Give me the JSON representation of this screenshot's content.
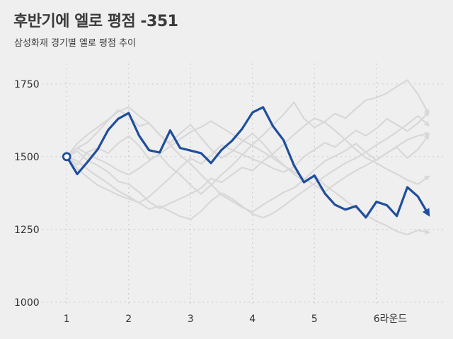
{
  "title": "후반기에 엘로 평점 -351",
  "subtitle": "삼성화재 경기별 엘로 평점 추이",
  "colors": {
    "background": "#efefef",
    "highlight": "#1f4e9c",
    "others": "#d8d8d8",
    "grid": "#c6c6c6",
    "text": "#333333"
  },
  "chart_data": {
    "type": "line",
    "title": "후반기에 엘로 평점 -351",
    "subtitle": "삼성화재 경기별 엘로 평점 추이",
    "xlabel": "",
    "ylabel": "",
    "xlim": [
      0.7,
      7.1
    ],
    "ylim": [
      980,
      1820
    ],
    "x_ticks": [
      1,
      2,
      3,
      4,
      5,
      6
    ],
    "x_tick_labels": [
      "1",
      "2",
      "3",
      "4",
      "5",
      "6라운드"
    ],
    "y_ticks": [
      1000,
      1250,
      1500,
      1750
    ],
    "y_tick_labels": [
      "1000",
      "1250",
      "1500",
      "1750"
    ],
    "grid": "dotted",
    "highlight_series": {
      "x": [
        1,
        1.17,
        1.33,
        1.5,
        1.67,
        1.83,
        2,
        2.17,
        2.33,
        2.5,
        2.67,
        2.83,
        3,
        3.17,
        3.33,
        3.5,
        3.67,
        3.83,
        4,
        4.17,
        4.33,
        4.5,
        4.67,
        4.83,
        5,
        5.17,
        5.33,
        5.5,
        5.67,
        5.83,
        6,
        6.17,
        6.33,
        6.5,
        6.67,
        6.83
      ],
      "values": [
        1500,
        1440,
        1480,
        1525,
        1592,
        1630,
        1650,
        1572,
        1522,
        1514,
        1590,
        1530,
        1521,
        1512,
        1478,
        1523,
        1555,
        1595,
        1652,
        1670,
        1605,
        1557,
        1470,
        1412,
        1435,
        1373,
        1335,
        1318,
        1330,
        1291,
        1345,
        1333,
        1296,
        1395,
        1363,
        1305
      ]
    },
    "background_series": [
      {
        "values": [
          1500,
          1530,
          1548,
          1585,
          1625,
          1660,
          1640,
          1605,
          1615,
          1575,
          1547,
          1580,
          1610,
          1565,
          1525,
          1495,
          1518,
          1551,
          1580,
          1545,
          1505,
          1472,
          1440,
          1415,
          1437,
          1402,
          1378,
          1350,
          1322,
          1300,
          1278,
          1262,
          1243,
          1232,
          1247,
          1240
        ]
      },
      {
        "values": [
          1500,
          1472,
          1515,
          1530,
          1512,
          1546,
          1571,
          1537,
          1492,
          1505,
          1465,
          1438,
          1402,
          1372,
          1402,
          1438,
          1470,
          1505,
          1542,
          1574,
          1609,
          1645,
          1687,
          1631,
          1600,
          1621,
          1648,
          1632,
          1665,
          1694,
          1703,
          1718,
          1741,
          1763,
          1715,
          1652
        ]
      },
      {
        "values": [
          1500,
          1460,
          1430,
          1402,
          1385,
          1368,
          1355,
          1342,
          1362,
          1395,
          1428,
          1462,
          1495,
          1475,
          1505,
          1540,
          1523,
          1508,
          1492,
          1478,
          1460,
          1447,
          1465,
          1500,
          1524,
          1548,
          1533,
          1562,
          1590,
          1572,
          1597,
          1630,
          1610,
          1588,
          1615,
          1650
        ]
      },
      {
        "values": [
          1500,
          1519,
          1488,
          1470,
          1447,
          1415,
          1405,
          1378,
          1345,
          1322,
          1340,
          1355,
          1372,
          1392,
          1425,
          1412,
          1438,
          1463,
          1452,
          1485,
          1510,
          1542,
          1576,
          1605,
          1632,
          1618,
          1590,
          1558,
          1524,
          1496,
          1478,
          1457,
          1440,
          1420,
          1405,
          1430
        ]
      },
      {
        "values": [
          1500,
          1545,
          1575,
          1601,
          1628,
          1655,
          1670,
          1640,
          1615,
          1575,
          1540,
          1505,
          1476,
          1438,
          1405,
          1368,
          1347,
          1326,
          1310,
          1335,
          1355,
          1377,
          1393,
          1420,
          1455,
          1485,
          1502,
          1521,
          1545,
          1515,
          1488,
          1513,
          1532,
          1495,
          1525,
          1570
        ]
      },
      {
        "values": [
          1500,
          1485,
          1458,
          1432,
          1408,
          1382,
          1363,
          1341,
          1320,
          1330,
          1312,
          1295,
          1285,
          1312,
          1348,
          1375,
          1355,
          1330,
          1303,
          1290,
          1305,
          1330,
          1358,
          1382,
          1408,
          1433,
          1455,
          1478,
          1495,
          1515,
          1540,
          1562,
          1585,
          1612,
          1640,
          1610
        ]
      },
      {
        "values": [
          1500,
          1530,
          1510,
          1492,
          1475,
          1453,
          1438,
          1460,
          1485,
          1510,
          1535,
          1560,
          1585,
          1602,
          1622,
          1600,
          1578,
          1557,
          1538,
          1517,
          1495,
          1470,
          1448,
          1426,
          1402,
          1380,
          1405,
          1430,
          1452,
          1470,
          1490,
          1512,
          1535,
          1558,
          1572,
          1578
        ]
      }
    ]
  }
}
